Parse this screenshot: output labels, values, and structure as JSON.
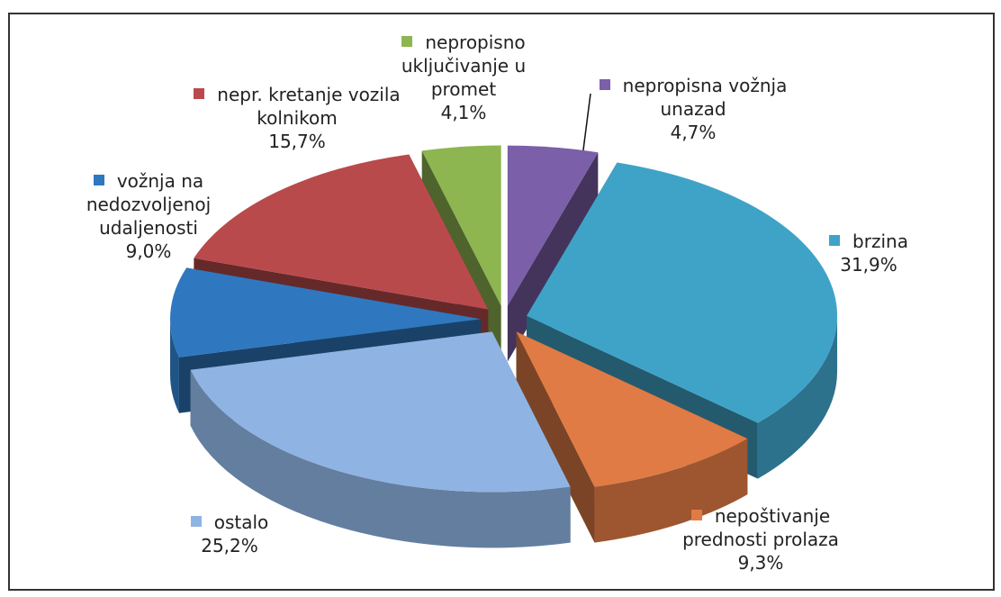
{
  "chart_data": {
    "type": "pie",
    "categories": [
      "nepropisna vožnja unazad",
      "brzina",
      "nepoštivanje prednosti prolaza",
      "ostalo",
      "vožnja na nedozvoljenoj udaljenosti",
      "nepr. kretanje vozila kolnikom",
      "nepropisno uključivanje u promet"
    ],
    "values": [
      4.7,
      31.9,
      9.3,
      25.2,
      9.0,
      15.7,
      4.1
    ],
    "value_labels": [
      "4,7%",
      "31,9%",
      "9,3%",
      "25,2%",
      "9,0%",
      "15,7%",
      "4,1%"
    ],
    "colors": [
      "#7b5fa8",
      "#3fa3c8",
      "#e07b45",
      "#8fb4e3",
      "#2f78bf",
      "#b94a4c",
      "#8db550"
    ]
  }
}
